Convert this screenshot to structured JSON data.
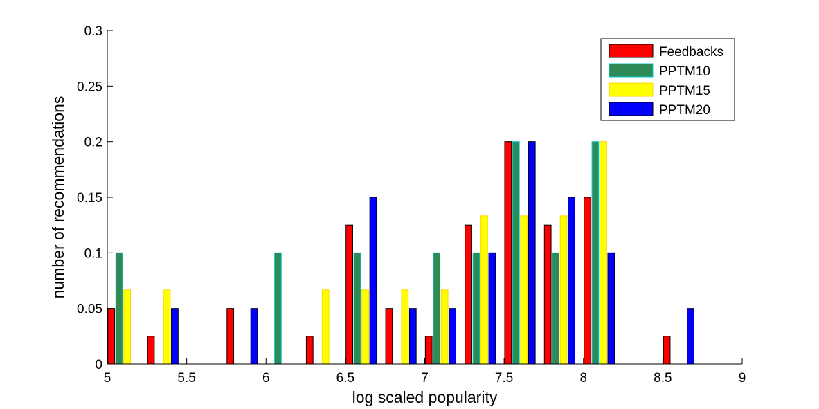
{
  "chart_data": {
    "type": "bar",
    "xlabel": "log scaled popularity",
    "ylabel": "number of recommendations",
    "xlim": [
      5,
      9
    ],
    "ylim": [
      0,
      0.3
    ],
    "xticks": [
      5,
      5.5,
      6,
      6.5,
      7,
      7.5,
      8,
      8.5,
      9
    ],
    "yticks": [
      0,
      0.05,
      0.1,
      0.15,
      0.2,
      0.25,
      0.3
    ],
    "xtick_labels": [
      "5",
      "5.5",
      "6",
      "6.5",
      "7",
      "7.5",
      "8",
      "8.5",
      "9"
    ],
    "ytick_labels": [
      "0",
      "0.05",
      "0.1",
      "0.15",
      "0.2",
      "0.25",
      "0.3"
    ],
    "grid": false,
    "legend_position": "top-right",
    "bin_centers": [
      5.1,
      5.35,
      5.6,
      5.85,
      6.1,
      6.35,
      6.6,
      6.85,
      7.1,
      7.35,
      7.6,
      7.85,
      8.1,
      8.35,
      8.6,
      8.85
    ],
    "series": [
      {
        "name": "Feedbacks",
        "color": "#ff0000",
        "edge": "#000000",
        "values": [
          0.05,
          0.025,
          0,
          0.05,
          0,
          0.025,
          0.125,
          0.05,
          0.025,
          0.125,
          0.2,
          0.125,
          0.15,
          0,
          0.025,
          0
        ]
      },
      {
        "name": "PPTM10",
        "color": "#2e8b57",
        "edge": "#00cccc",
        "values": [
          0.1,
          0,
          0,
          0,
          0.1,
          0,
          0.1,
          0,
          0.1,
          0.1,
          0.2,
          0.1,
          0.2,
          0,
          0,
          0
        ]
      },
      {
        "name": "PPTM15",
        "color": "#ffff00",
        "edge": "#ffd700",
        "values": [
          0.0667,
          0.0667,
          0,
          0,
          0,
          0.0667,
          0.0667,
          0.0667,
          0.0667,
          0.1333,
          0.1333,
          0.1333,
          0.2,
          0,
          0,
          0
        ]
      },
      {
        "name": "PPTM20",
        "color": "#0000ff",
        "edge": "#000000",
        "values": [
          0,
          0.05,
          0,
          0.05,
          0,
          0,
          0.15,
          0.05,
          0.05,
          0.1,
          0.2,
          0.15,
          0.1,
          0,
          0.05,
          0
        ]
      }
    ]
  }
}
